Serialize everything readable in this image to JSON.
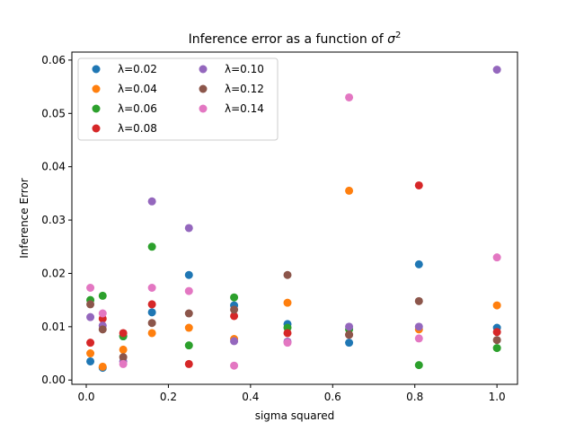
{
  "chart_data": {
    "type": "scatter",
    "title_main": "Inference error as a function of ",
    "title_symbol": "σ",
    "title_superscript": "2",
    "xlabel": "sigma squared",
    "ylabel": "Inference Error",
    "xlim": [
      -0.035,
      1.05
    ],
    "ylim": [
      -0.0008,
      0.0615
    ],
    "xticks": [
      0.0,
      0.2,
      0.4,
      0.6,
      0.8,
      1.0
    ],
    "xtick_labels": [
      "0.0",
      "0.2",
      "0.4",
      "0.6",
      "0.8",
      "1.0"
    ],
    "yticks": [
      0.0,
      0.01,
      0.02,
      0.03,
      0.04,
      0.05,
      0.06
    ],
    "ytick_labels": [
      "0.00",
      "0.01",
      "0.02",
      "0.03",
      "0.04",
      "0.05",
      "0.06"
    ],
    "grid": false,
    "legend_position": "top-left",
    "legend_columns": 2,
    "x": [
      0.01,
      0.04,
      0.09,
      0.16,
      0.25,
      0.36,
      0.49,
      0.64,
      0.81,
      1.0
    ],
    "series": [
      {
        "name": "λ=0.02",
        "color": "#1f77b4",
        "values": [
          0.0035,
          0.0023,
          0.0082,
          0.0127,
          0.0197,
          0.014,
          0.0105,
          0.007,
          0.0217,
          0.0098
        ]
      },
      {
        "name": "λ=0.04",
        "color": "#ff7f0e",
        "values": [
          0.005,
          0.0025,
          0.0057,
          0.0088,
          0.0098,
          0.0077,
          0.0145,
          0.0355,
          0.0095,
          0.014
        ]
      },
      {
        "name": "λ=0.06",
        "color": "#2ca02c",
        "values": [
          0.015,
          0.0158,
          0.0082,
          0.025,
          0.0065,
          0.0155,
          0.0098,
          0.0095,
          0.0028,
          0.006
        ]
      },
      {
        "name": "λ=0.08",
        "color": "#d62728",
        "values": [
          0.007,
          0.0115,
          0.0088,
          0.0142,
          0.003,
          0.012,
          0.0088,
          0.0085,
          0.0365,
          0.009
        ]
      },
      {
        "name": "λ=0.10",
        "color": "#9467bd",
        "values": [
          0.0118,
          0.0102,
          0.0035,
          0.0335,
          0.0285,
          0.0073,
          0.0072,
          0.01,
          0.01,
          0.0582
        ]
      },
      {
        "name": "λ=0.12",
        "color": "#8c564b",
        "values": [
          0.0142,
          0.0095,
          0.0043,
          0.0107,
          0.0125,
          0.0132,
          0.0197,
          0.0085,
          0.0148,
          0.0075
        ]
      },
      {
        "name": "λ=0.14",
        "color": "#e377c2",
        "values": [
          0.0173,
          0.0125,
          0.003,
          0.0173,
          0.0167,
          0.0027,
          0.007,
          0.053,
          0.0078,
          0.023
        ]
      }
    ]
  }
}
